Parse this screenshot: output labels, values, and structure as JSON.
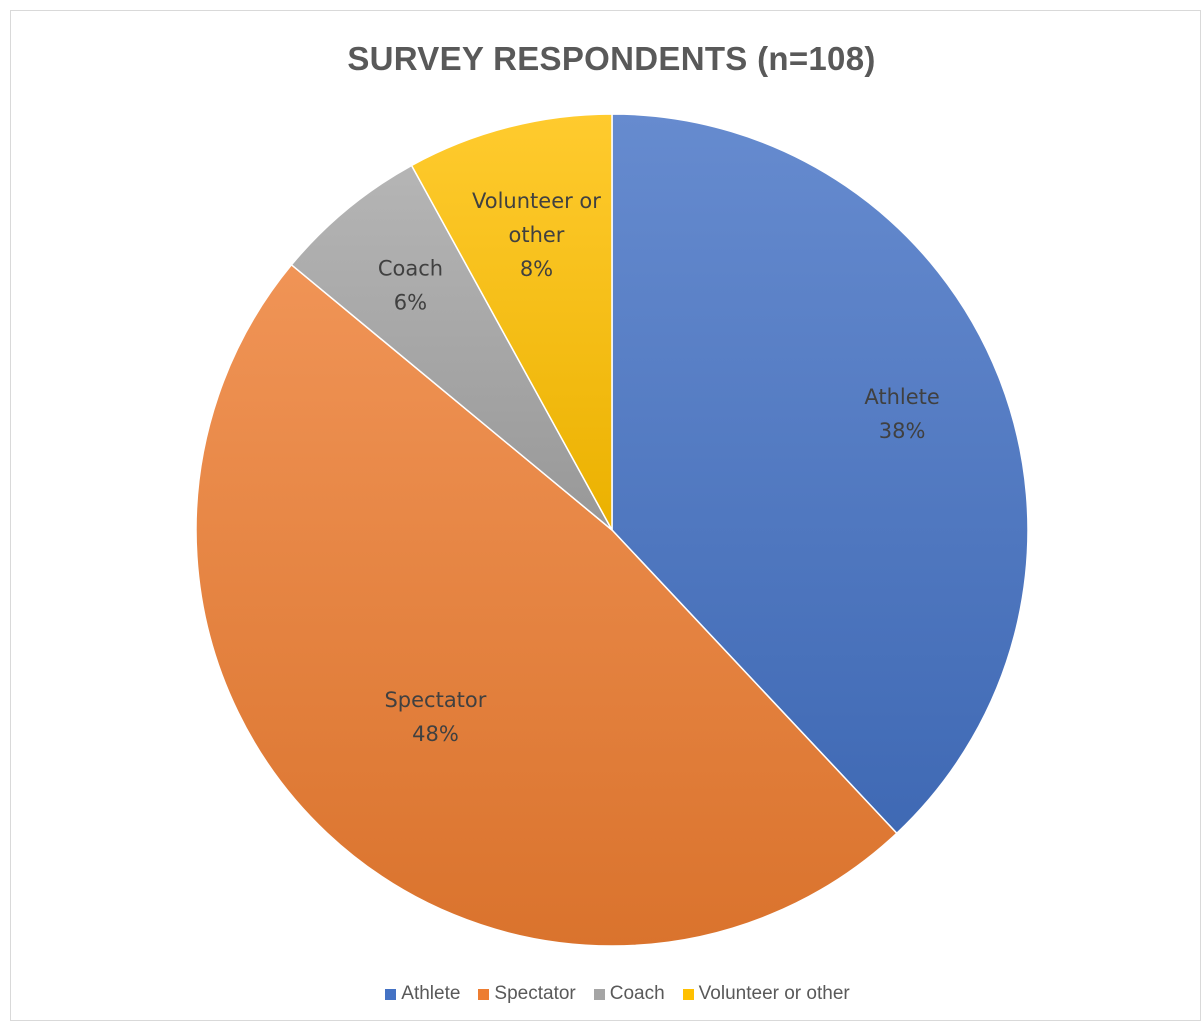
{
  "chart_data": {
    "type": "pie",
    "title": "SURVEY RESPONDENTS (n=108)",
    "slices": [
      {
        "name": "Athlete",
        "value": 38,
        "label_line1": "Athlete",
        "label_line2": "",
        "percent_label": "38%",
        "color": "#4472c4"
      },
      {
        "name": "Spectator",
        "value": 48,
        "label_line1": "Spectator",
        "label_line2": "",
        "percent_label": "48%",
        "color": "#ed7d31"
      },
      {
        "name": "Coach",
        "value": 6,
        "label_line1": "Coach",
        "label_line2": "",
        "percent_label": "6%",
        "color": "#a5a5a5"
      },
      {
        "name": "Volunteer or other",
        "value": 8,
        "label_line1": "Volunteer or",
        "label_line2": "other",
        "percent_label": "8%",
        "color": "#ffc000"
      }
    ],
    "start_angle": "12 o'clock",
    "direction": "clockwise",
    "legend_position": "bottom"
  }
}
